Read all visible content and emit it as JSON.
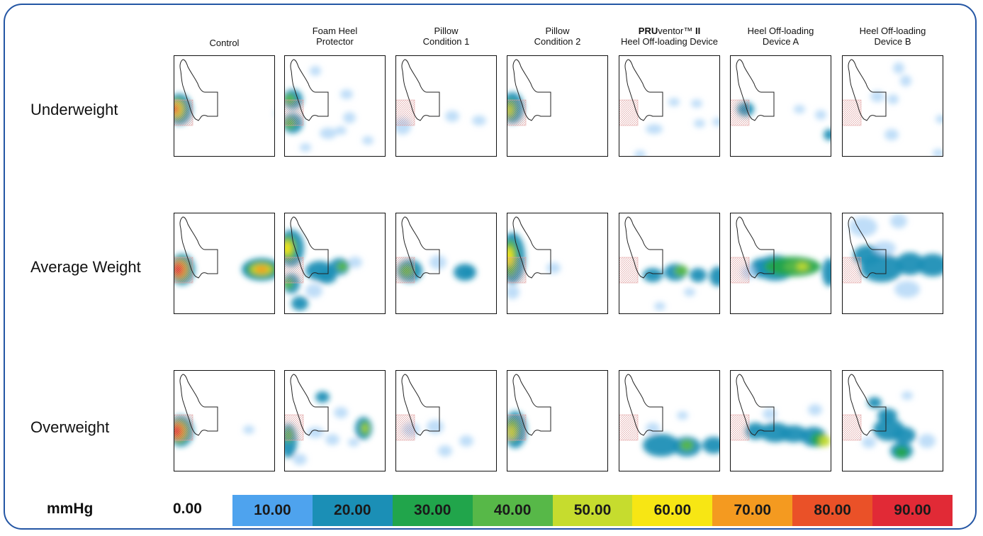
{
  "columns": [
    {
      "lines": [
        "Control"
      ]
    },
    {
      "lines": [
        "Foam Heel",
        "Protector"
      ]
    },
    {
      "lines": [
        "Pillow",
        "Condition 1"
      ]
    },
    {
      "lines": [
        "Pillow",
        "Condition 2"
      ]
    },
    {
      "lines": [
        "PRUventor™ II",
        "Heel Off-loading Device"
      ]
    },
    {
      "lines": [
        "Heel Off-loading",
        "Device A"
      ]
    },
    {
      "lines": [
        "Heel Off-loading",
        "Device B"
      ]
    }
  ],
  "rows": [
    {
      "label": "Underweight"
    },
    {
      "label": "Average Weight"
    },
    {
      "label": "Overweight"
    }
  ],
  "legend": {
    "unit": "mmHg",
    "zero_label": "0.00",
    "stops": [
      {
        "label": "10.00",
        "color": "#4ea3ee"
      },
      {
        "label": "20.00",
        "color": "#1b8fb6"
      },
      {
        "label": "30.00",
        "color": "#21a54b"
      },
      {
        "label": "40.00",
        "color": "#57b848"
      },
      {
        "label": "50.00",
        "color": "#c6dc2e"
      },
      {
        "label": "60.00",
        "color": "#f7e614"
      },
      {
        "label": "70.00",
        "color": "#f49a20"
      },
      {
        "label": "80.00",
        "color": "#ea5128"
      },
      {
        "label": "90.00",
        "color": "#e12a36"
      }
    ]
  }
}
